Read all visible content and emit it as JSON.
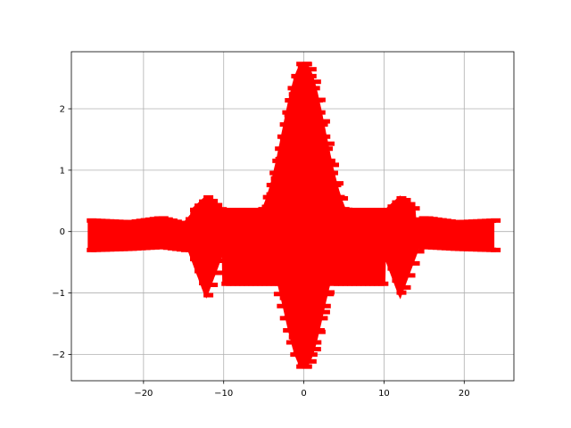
{
  "chart_data": {
    "type": "line",
    "title": "",
    "xlabel": "",
    "ylabel": "",
    "xlim": [
      -29,
      26.2
    ],
    "ylim": [
      -2.43,
      2.93
    ],
    "x_ticks": [
      -20,
      -10,
      0,
      10,
      20
    ],
    "x_tick_labels": [
      "−20",
      "−10",
      "0",
      "10",
      "20"
    ],
    "y_ticks": [
      -2,
      -1,
      0,
      1,
      2
    ],
    "y_tick_labels": [
      "−2",
      "−1",
      "0",
      "1",
      "2"
    ],
    "grid": true,
    "legend": "none",
    "series": [
      {
        "color": "#ff0000",
        "x_range": [
          -26.8,
          23.6
        ],
        "center_offset": -0.6,
        "core": {
          "x_range": [
            -10.0,
            10.0
          ],
          "upper_band": 0.35,
          "lower_band": -0.85
        },
        "peak": {
          "x": 0.0,
          "max": 2.73,
          "min": -2.2,
          "width": 3.4
        },
        "shoulders": [
          {
            "x": -12.2,
            "max": 0.56,
            "min": -1.05
          },
          {
            "x": 12.0,
            "max": 0.56,
            "min": -1.05
          }
        ],
        "tails": {
          "upper": [
            [
              -26.8,
              0.18
            ],
            [
              -22.0,
              0.15
            ],
            [
              -18.0,
              0.22
            ],
            [
              -15.0,
              0.12
            ],
            [
              -13.5,
              0.35
            ]
          ],
          "lower": [
            [
              -26.8,
              -0.3
            ],
            [
              -22.0,
              -0.28
            ],
            [
              -18.0,
              -0.25
            ],
            [
              -15.0,
              -0.3
            ]
          ]
        }
      }
    ]
  }
}
